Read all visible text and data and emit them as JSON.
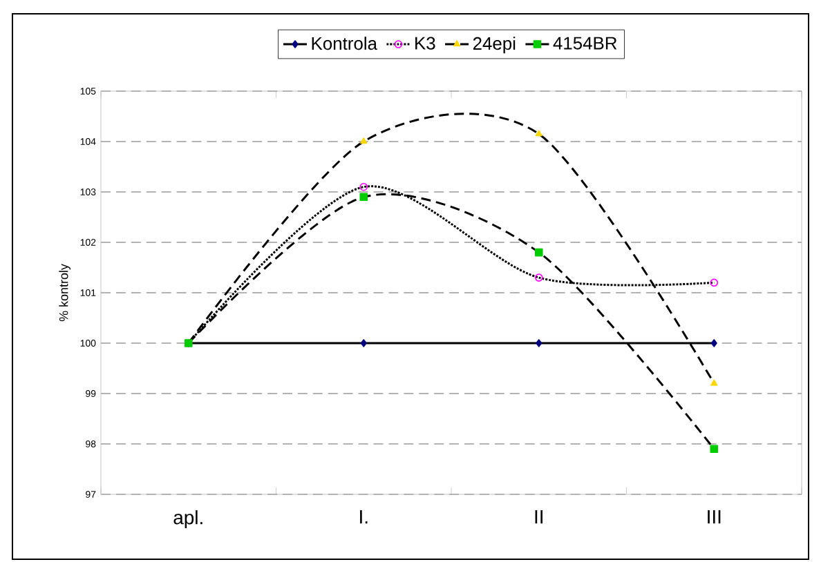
{
  "chart_data": {
    "type": "line",
    "ylabel": "% kontroly",
    "categories": [
      "apl.",
      "I.",
      "II",
      "III"
    ],
    "series": [
      {
        "name": "Kontrola",
        "color": "#000080",
        "values": [
          100,
          100,
          100,
          100
        ],
        "marker": "diamond",
        "line_style": "solid"
      },
      {
        "name": "K3",
        "color": "#ff00ff",
        "values": [
          100,
          103.1,
          101.3,
          101.2
        ],
        "marker": "circle",
        "line_style": "dotted"
      },
      {
        "name": "24epi",
        "color": "#ffd700",
        "values": [
          100,
          104.0,
          104.15,
          99.2
        ],
        "marker": "triangle",
        "line_style": "dashed"
      },
      {
        "name": "4154BR",
        "color": "#00cc00",
        "values": [
          100,
          102.9,
          101.8,
          97.9
        ],
        "marker": "square",
        "line_style": "dashed"
      }
    ],
    "ylim": [
      97,
      105
    ],
    "yticks": [
      97,
      98,
      99,
      100,
      101,
      102,
      103,
      104,
      105
    ],
    "grid": "y",
    "legend": "top"
  }
}
